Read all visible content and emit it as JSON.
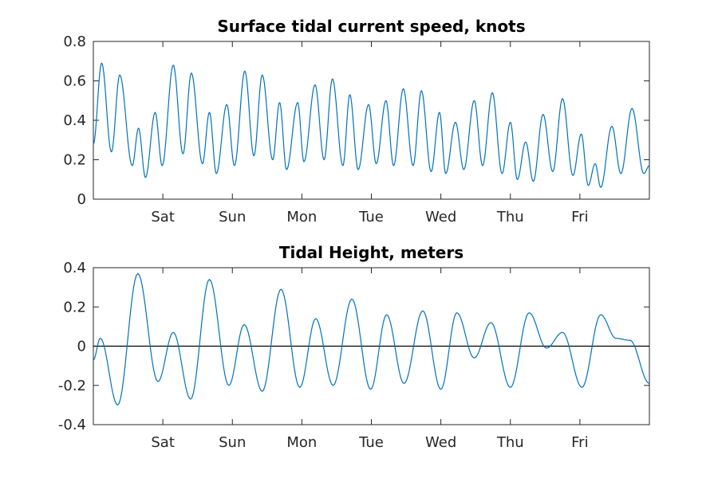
{
  "colors": {
    "series": "#0072bd",
    "axis": "#262626",
    "zero_line": "#000000"
  },
  "chart_data": [
    {
      "type": "line",
      "title": "Surface tidal current speed, knots",
      "xlabel": "",
      "ylabel": "",
      "xlim": [
        0,
        8
      ],
      "ylim": [
        0,
        0.8
      ],
      "yticks": [
        0,
        0.2,
        0.4,
        0.6,
        0.8
      ],
      "ytick_labels": [
        "0",
        "0.2",
        "0.4",
        "0.6",
        "0.8"
      ],
      "xticks": [
        1,
        2,
        3,
        4,
        5,
        6,
        7
      ],
      "xtick_labels": [
        "Sat",
        "Sun",
        "Mon",
        "Tue",
        "Wed",
        "Thu",
        "Fri"
      ],
      "grid": false,
      "zero_line": false,
      "series": [
        {
          "peaks": [
            [
              0.0,
              0.28
            ],
            [
              0.12,
              0.69
            ],
            [
              0.26,
              0.24
            ],
            [
              0.38,
              0.63
            ],
            [
              0.56,
              0.17
            ],
            [
              0.65,
              0.36
            ],
            [
              0.75,
              0.11
            ],
            [
              0.89,
              0.44
            ],
            [
              0.99,
              0.17
            ],
            [
              1.15,
              0.68
            ],
            [
              1.29,
              0.23
            ],
            [
              1.41,
              0.64
            ],
            [
              1.57,
              0.18
            ],
            [
              1.67,
              0.44
            ],
            [
              1.77,
              0.13
            ],
            [
              1.92,
              0.48
            ],
            [
              2.03,
              0.17
            ],
            [
              2.18,
              0.65
            ],
            [
              2.31,
              0.22
            ],
            [
              2.43,
              0.63
            ],
            [
              2.58,
              0.2
            ],
            [
              2.68,
              0.49
            ],
            [
              2.78,
              0.15
            ],
            [
              2.94,
              0.49
            ],
            [
              3.03,
              0.19
            ],
            [
              3.19,
              0.58
            ],
            [
              3.32,
              0.2
            ],
            [
              3.44,
              0.61
            ],
            [
              3.59,
              0.17
            ],
            [
              3.69,
              0.53
            ],
            [
              3.81,
              0.15
            ],
            [
              3.96,
              0.48
            ],
            [
              4.07,
              0.18
            ],
            [
              4.21,
              0.5
            ],
            [
              4.32,
              0.17
            ],
            [
              4.46,
              0.56
            ],
            [
              4.6,
              0.17
            ],
            [
              4.72,
              0.55
            ],
            [
              4.86,
              0.14
            ],
            [
              4.98,
              0.44
            ],
            [
              5.07,
              0.13
            ],
            [
              5.21,
              0.39
            ],
            [
              5.33,
              0.15
            ],
            [
              5.48,
              0.5
            ],
            [
              5.6,
              0.17
            ],
            [
              5.74,
              0.54
            ],
            [
              5.88,
              0.13
            ],
            [
              6.0,
              0.39
            ],
            [
              6.1,
              0.1
            ],
            [
              6.22,
              0.29
            ],
            [
              6.33,
              0.09
            ],
            [
              6.47,
              0.43
            ],
            [
              6.61,
              0.14
            ],
            [
              6.75,
              0.51
            ],
            [
              6.9,
              0.12
            ],
            [
              7.02,
              0.33
            ],
            [
              7.12,
              0.07
            ],
            [
              7.22,
              0.18
            ],
            [
              7.3,
              0.06
            ],
            [
              7.46,
              0.37
            ],
            [
              7.59,
              0.13
            ],
            [
              7.75,
              0.46
            ],
            [
              7.92,
              0.13
            ],
            [
              8.0,
              0.17
            ]
          ]
        }
      ]
    },
    {
      "type": "line",
      "title": "Tidal Height, meters",
      "xlabel": "",
      "ylabel": "",
      "xlim": [
        0,
        8
      ],
      "ylim": [
        -0.4,
        0.4
      ],
      "yticks": [
        -0.4,
        -0.2,
        0,
        0.2,
        0.4
      ],
      "ytick_labels": [
        "-0.4",
        "-0.2",
        "0",
        "0.2",
        "0.4"
      ],
      "xticks": [
        1,
        2,
        3,
        4,
        5,
        6,
        7
      ],
      "xtick_labels": [
        "Sat",
        "Sun",
        "Mon",
        "Tue",
        "Wed",
        "Thu",
        "Fri"
      ],
      "grid": false,
      "zero_line": true,
      "series": [
        {
          "peaks": [
            [
              0.0,
              -0.07
            ],
            [
              0.1,
              0.04
            ],
            [
              0.35,
              -0.3
            ],
            [
              0.64,
              0.37
            ],
            [
              0.93,
              -0.18
            ],
            [
              1.15,
              0.07
            ],
            [
              1.4,
              -0.27
            ],
            [
              1.67,
              0.34
            ],
            [
              1.95,
              -0.2
            ],
            [
              2.17,
              0.11
            ],
            [
              2.43,
              -0.23
            ],
            [
              2.7,
              0.29
            ],
            [
              2.97,
              -0.21
            ],
            [
              3.2,
              0.14
            ],
            [
              3.45,
              -0.2
            ],
            [
              3.72,
              0.24
            ],
            [
              3.99,
              -0.22
            ],
            [
              4.22,
              0.16
            ],
            [
              4.47,
              -0.19
            ],
            [
              4.74,
              0.18
            ],
            [
              5.0,
              -0.22
            ],
            [
              5.23,
              0.17
            ],
            [
              5.48,
              -0.06
            ],
            [
              5.72,
              0.12
            ],
            [
              6.0,
              -0.21
            ],
            [
              6.27,
              0.17
            ],
            [
              6.52,
              -0.01
            ],
            [
              6.75,
              0.07
            ],
            [
              7.03,
              -0.21
            ],
            [
              7.3,
              0.16
            ],
            [
              7.52,
              0.04
            ],
            [
              7.72,
              0.03
            ],
            [
              8.0,
              -0.19
            ]
          ]
        }
      ]
    }
  ]
}
